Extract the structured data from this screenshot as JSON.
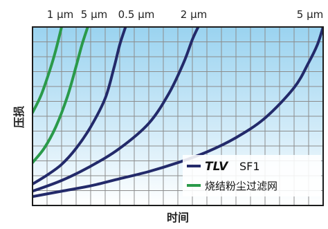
{
  "chart_data": {
    "type": "line",
    "xlabel": "时间",
    "ylabel": "压损",
    "xlim": [
      0,
      1
    ],
    "ylim": [
      0,
      1
    ],
    "grid": true,
    "legend_position": "bottom-right",
    "top_labels": [
      "1 μm",
      "5 μm",
      "0.5 μm",
      "2 μm",
      "5 μm"
    ],
    "legend": [
      {
        "brand": "TLV",
        "product": "SF1",
        "color": "#232a6a"
      },
      {
        "label": "烧结粉尘过滤网",
        "color": "#2a9a4a"
      }
    ],
    "series": [
      {
        "group": "TLV SF1",
        "label": "5 μm",
        "color": "#232a6a",
        "points": [
          [
            0,
            0.05
          ],
          [
            0.1,
            0.08
          ],
          [
            0.2,
            0.11
          ],
          [
            0.3,
            0.15
          ],
          [
            0.4,
            0.19
          ],
          [
            0.5,
            0.24
          ],
          [
            0.6,
            0.3
          ],
          [
            0.7,
            0.38
          ],
          [
            0.8,
            0.49
          ],
          [
            0.9,
            0.66
          ],
          [
            0.95,
            0.8
          ],
          [
            0.98,
            0.9
          ],
          [
            1.0,
            1.0
          ]
        ]
      },
      {
        "group": "TLV SF1",
        "label": "2 μm",
        "color": "#232a6a",
        "points": [
          [
            0,
            0.08
          ],
          [
            0.1,
            0.14
          ],
          [
            0.2,
            0.22
          ],
          [
            0.3,
            0.32
          ],
          [
            0.4,
            0.46
          ],
          [
            0.47,
            0.63
          ],
          [
            0.52,
            0.8
          ],
          [
            0.55,
            0.93
          ],
          [
            0.57,
            1.0
          ]
        ]
      },
      {
        "group": "TLV SF1",
        "label": "0.5 μm",
        "color": "#232a6a",
        "points": [
          [
            0,
            0.12
          ],
          [
            0.05,
            0.17
          ],
          [
            0.1,
            0.23
          ],
          [
            0.15,
            0.32
          ],
          [
            0.2,
            0.44
          ],
          [
            0.25,
            0.6
          ],
          [
            0.28,
            0.77
          ],
          [
            0.3,
            0.9
          ],
          [
            0.32,
            1.0
          ]
        ]
      },
      {
        "group": "烧结粉尘过滤网",
        "label": "5 μm",
        "color": "#2a9a4a",
        "points": [
          [
            0,
            0.24
          ],
          [
            0.04,
            0.32
          ],
          [
            0.08,
            0.44
          ],
          [
            0.12,
            0.61
          ],
          [
            0.15,
            0.78
          ],
          [
            0.17,
            0.9
          ],
          [
            0.19,
            1.0
          ]
        ]
      },
      {
        "group": "烧结粉尘过滤网",
        "label": "1 μm",
        "color": "#2a9a4a",
        "points": [
          [
            0,
            0.52
          ],
          [
            0.03,
            0.62
          ],
          [
            0.06,
            0.76
          ],
          [
            0.08,
            0.87
          ],
          [
            0.1,
            1.0
          ]
        ]
      }
    ]
  }
}
